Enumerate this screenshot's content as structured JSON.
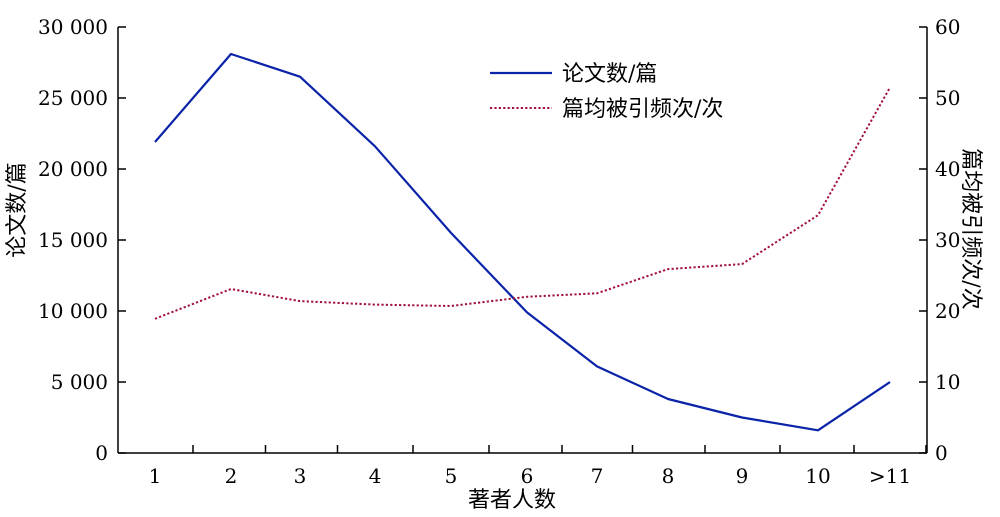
{
  "chart_data": {
    "type": "line",
    "title": "",
    "xlabel": "著者人数",
    "ylabel": "论文数/篇",
    "y2label": "篇均被引频次/次",
    "categories": [
      "1",
      "2",
      "3",
      "4",
      "5",
      "6",
      "7",
      "8",
      "9",
      "10",
      ">11"
    ],
    "ylim": [
      0,
      30000
    ],
    "y2lim": [
      0,
      60
    ],
    "y_ticks": [
      0,
      5000,
      10000,
      15000,
      20000,
      25000,
      30000
    ],
    "y_tick_labels": [
      "0",
      "5 000",
      "10 000",
      "15 000",
      "20 000",
      "25 000",
      "30 000"
    ],
    "y2_ticks": [
      0,
      10,
      20,
      30,
      40,
      50,
      60
    ],
    "y2_tick_labels": [
      "0",
      "10",
      "20",
      "30",
      "40",
      "50",
      "60"
    ],
    "grid": false,
    "legend": "top-center",
    "series": [
      {
        "name": "论文数/篇",
        "axis": "left",
        "style": "solid",
        "color": "#0a23a8",
        "values": [
          21900,
          28100,
          26500,
          21600,
          15500,
          9900,
          6100,
          3800,
          2500,
          1600,
          5000
        ]
      },
      {
        "name": "篇均被引频次/次",
        "axis": "right",
        "style": "dotted",
        "color": "#a0103c",
        "values": [
          18.9,
          23.1,
          21.4,
          20.9,
          20.7,
          22.0,
          22.5,
          25.9,
          26.6,
          33.5,
          51.5
        ]
      }
    ]
  }
}
